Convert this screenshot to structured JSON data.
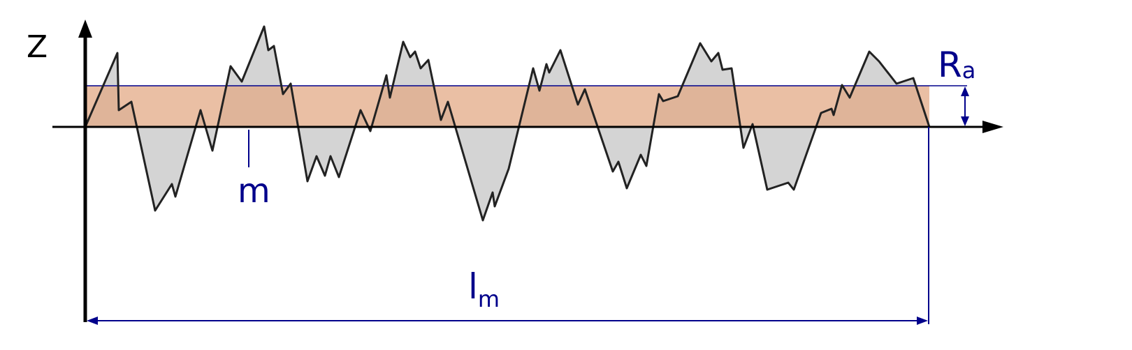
{
  "labels": {
    "z_axis": "Z",
    "mean_line": "m",
    "ra_main": "R",
    "ra_sub": "a",
    "length_main": "l",
    "length_sub": "m"
  },
  "colors": {
    "axis": "#000000",
    "annotation": "#00008b",
    "profile_fill": "#d4d4d4",
    "ra_band": "#e3aa85",
    "profile_line": "#222222"
  }
}
